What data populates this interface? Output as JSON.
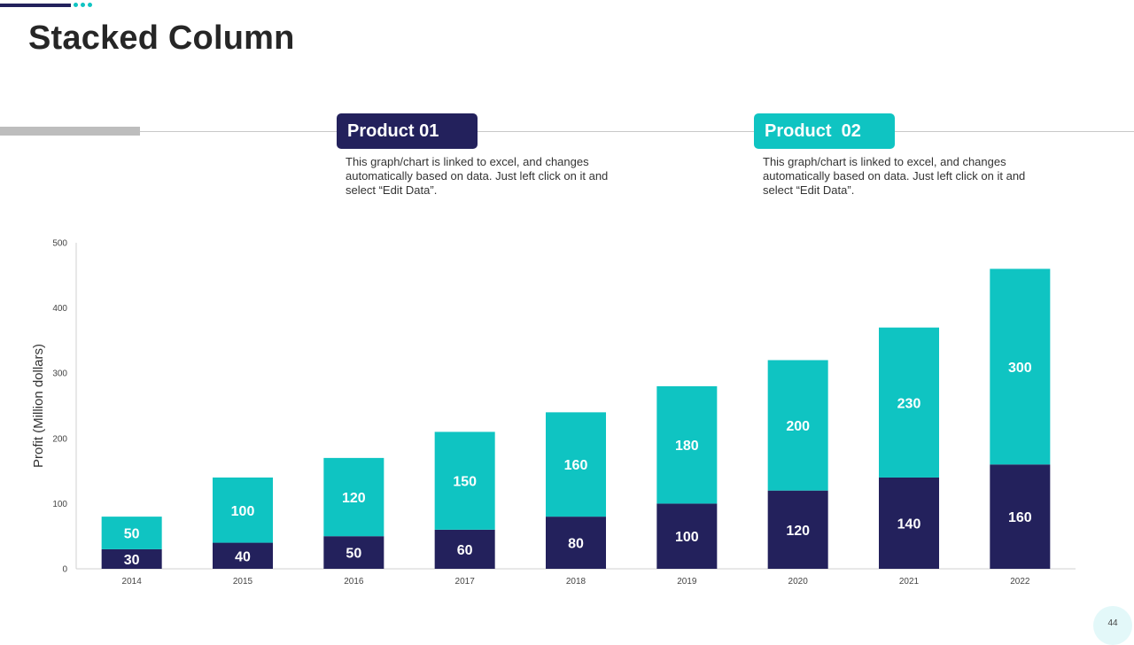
{
  "page": {
    "title": "Stacked Column",
    "page_number": "44"
  },
  "products": [
    {
      "label": "Product 01",
      "color": "#23215c",
      "description": "This graph/chart is linked to excel, and changes automatically based on data. Just left click on it and select “Edit Data”."
    },
    {
      "label": "Product  02",
      "color": "#0fc4c2",
      "description": "This graph/chart is linked to excel, and changes automatically based on data. Just left click on it and select “Edit Data”."
    }
  ],
  "chart_data": {
    "type": "bar",
    "stacked": true,
    "title": "",
    "xlabel": "",
    "ylabel": "Profit  (Million dollars)",
    "categories": [
      "2014",
      "2015",
      "2016",
      "2017",
      "2018",
      "2019",
      "2020",
      "2021",
      "2022"
    ],
    "series": [
      {
        "name": "Product 01",
        "color": "#23215c",
        "values": [
          30,
          40,
          50,
          60,
          80,
          100,
          120,
          140,
          160
        ]
      },
      {
        "name": "Product 02",
        "color": "#0fc4c2",
        "values": [
          50,
          100,
          120,
          150,
          160,
          180,
          200,
          230,
          300
        ]
      }
    ],
    "ylim": [
      0,
      500
    ],
    "yticks": [
      0,
      100,
      200,
      300,
      400,
      500
    ],
    "grid": false
  }
}
